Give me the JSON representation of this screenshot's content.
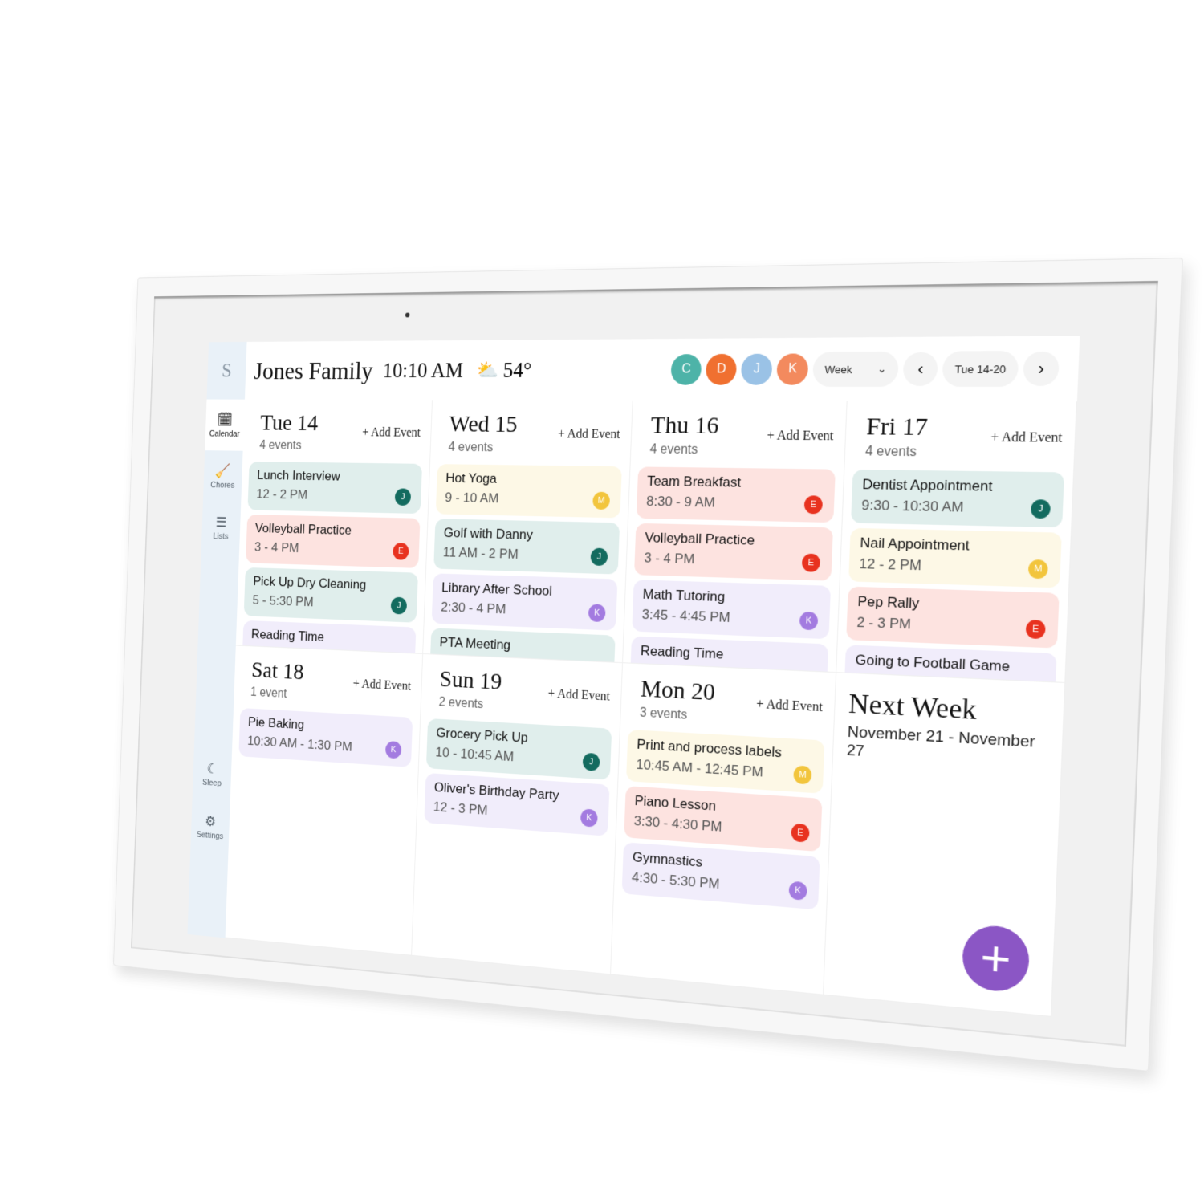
{
  "app": {
    "logo": "S",
    "title": "Jones Family",
    "time": "10:10 AM",
    "weather_icon": "partly-sunny-icon",
    "temperature": "54°"
  },
  "sidebar": {
    "items": [
      {
        "label": "Calendar",
        "icon": "calendar-icon",
        "glyph": "🗓",
        "active": true
      },
      {
        "label": "Chores",
        "icon": "broom-icon",
        "glyph": "🧹"
      },
      {
        "label": "Lists",
        "icon": "list-icon",
        "glyph": "☰"
      }
    ],
    "bottom": [
      {
        "label": "Sleep",
        "icon": "moon-icon",
        "glyph": "☾"
      },
      {
        "label": "Settings",
        "icon": "gear-icon",
        "glyph": "⚙"
      }
    ]
  },
  "members": [
    {
      "initial": "C",
      "color": "#4db3a8"
    },
    {
      "initial": "D",
      "color": "#f07030"
    },
    {
      "initial": "J",
      "color": "#9ac2e6"
    },
    {
      "initial": "K",
      "color": "#f38a5e"
    }
  ],
  "controls": {
    "view": "Week",
    "range": "Tue 14-20",
    "prev": "‹",
    "next": "›"
  },
  "colors": {
    "teal": "#e0eeec",
    "pink": "#fde3e0",
    "yellow": "#fdf8e6",
    "lavender": "#f1edfb",
    "J": "#136b5f",
    "E": "#e8321f",
    "M": "#f2c53d",
    "K": "#a37be0",
    "fab": "#8b56c5"
  },
  "add_event_label": "+ Add Event",
  "days": [
    {
      "name": "Tue  14",
      "count": "4 events",
      "events": [
        {
          "title": "Lunch Interview",
          "time": "12 - 2 PM",
          "who": "J",
          "bg": "teal"
        },
        {
          "title": "Volleyball Practice",
          "time": "3 - 4 PM",
          "who": "E",
          "bg": "pink"
        },
        {
          "title": "Pick Up Dry Cleaning",
          "time": "5 - 5:30 PM",
          "who": "J",
          "bg": "teal"
        },
        {
          "title": "Reading Time",
          "time": "",
          "who": "",
          "bg": "lavender"
        }
      ]
    },
    {
      "name": "Wed  15",
      "count": "4 events",
      "events": [
        {
          "title": "Hot Yoga",
          "time": "9 - 10 AM",
          "who": "M",
          "bg": "yellow"
        },
        {
          "title": "Golf with Danny",
          "time": "11 AM - 2 PM",
          "who": "J",
          "bg": "teal"
        },
        {
          "title": "Library After School",
          "time": "2:30 - 4 PM",
          "who": "K",
          "bg": "lavender"
        },
        {
          "title": "PTA Meeting",
          "time": "",
          "who": "",
          "bg": "teal"
        }
      ]
    },
    {
      "name": "Thu  16",
      "count": "4 events",
      "events": [
        {
          "title": "Team Breakfast",
          "time": "8:30 - 9 AM",
          "who": "E",
          "bg": "pink"
        },
        {
          "title": "Volleyball Practice",
          "time": "3 - 4 PM",
          "who": "E",
          "bg": "pink"
        },
        {
          "title": "Math Tutoring",
          "time": "3:45 - 4:45 PM",
          "who": "K",
          "bg": "lavender"
        },
        {
          "title": "Reading Time",
          "time": "",
          "who": "",
          "bg": "lavender"
        }
      ]
    },
    {
      "name": "Fri  17",
      "count": "4 events",
      "events": [
        {
          "title": "Dentist Appointment",
          "time": "9:30 - 10:30 AM",
          "who": "J",
          "bg": "teal"
        },
        {
          "title": "Nail Appointment",
          "time": "12 - 2 PM",
          "who": "M",
          "bg": "yellow"
        },
        {
          "title": "Pep Rally",
          "time": "2 - 3 PM",
          "who": "E",
          "bg": "pink"
        },
        {
          "title": "Going to Football Game",
          "time": "",
          "who": "",
          "bg": "lavender"
        }
      ]
    },
    {
      "name": "Sat  18",
      "count": "1 event",
      "events": [
        {
          "title": "Pie Baking",
          "time": "10:30 AM - 1:30 PM",
          "who": "K",
          "bg": "lavender"
        }
      ]
    },
    {
      "name": "Sun  19",
      "count": "2 events",
      "events": [
        {
          "title": "Grocery Pick Up",
          "time": "10 - 10:45 AM",
          "who": "J",
          "bg": "teal"
        },
        {
          "title": "Oliver's Birthday Party",
          "time": "12 - 3 PM",
          "who": "K",
          "bg": "lavender"
        }
      ]
    },
    {
      "name": "Mon  20",
      "count": "3 events",
      "events": [
        {
          "title": "Print and process labels",
          "time": "10:45 AM - 12:45 PM",
          "who": "M",
          "bg": "yellow"
        },
        {
          "title": "Piano Lesson",
          "time": "3:30 - 4:30 PM",
          "who": "E",
          "bg": "pink"
        },
        {
          "title": "Gymnastics",
          "time": "4:30 - 5:30 PM",
          "who": "K",
          "bg": "lavender"
        }
      ]
    }
  ],
  "next_week": {
    "title": "Next Week",
    "range": "November 21 - November 27"
  },
  "fab": {
    "label": "+"
  }
}
